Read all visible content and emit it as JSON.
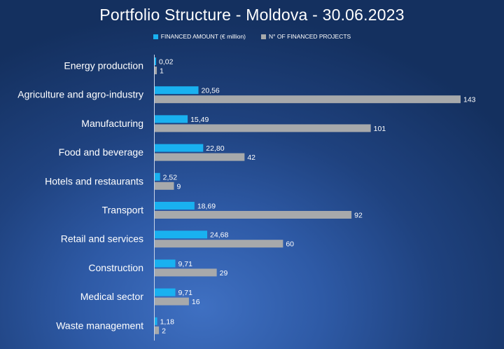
{
  "chart_data": {
    "type": "bar",
    "orientation": "horizontal",
    "title": "Portfolio Structure - Moldova - 30.06.2023",
    "categories": [
      "Energy production",
      "Agriculture and agro-industry",
      "Manufacturing",
      "Food and beverage",
      "Hotels and restaurants",
      "Transport",
      "Retail and services",
      "Construction",
      "Medical sector",
      "Waste management"
    ],
    "series": [
      {
        "name": "FINANCED AMOUNT (€ million)",
        "color": "#19b1f0",
        "values": [
          0.02,
          20.56,
          15.49,
          22.8,
          2.52,
          18.69,
          24.68,
          9.71,
          9.71,
          1.18
        ],
        "labels": [
          "0,02",
          "20,56",
          "15,49",
          "22,80",
          "2,52",
          "18,69",
          "24,68",
          "9,71",
          "9,71",
          "1,18"
        ]
      },
      {
        "name": "N° OF FINANCED PROJECTS",
        "color": "#a7a9ab",
        "values": [
          1,
          143,
          101,
          42,
          9,
          92,
          60,
          29,
          16,
          2
        ],
        "labels": [
          "1",
          "143",
          "101",
          "42",
          "9",
          "92",
          "60",
          "29",
          "16",
          "2"
        ]
      }
    ],
    "legend_position": "top",
    "grid": false
  }
}
